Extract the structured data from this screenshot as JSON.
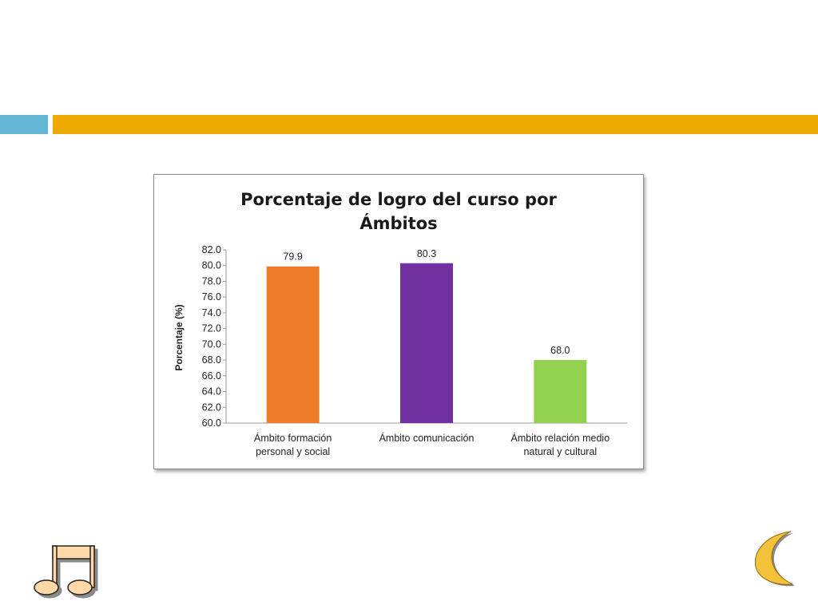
{
  "colors": {
    "accent_blue": "#62b5d3",
    "accent_gold": "#eeaa00"
  },
  "icons": {
    "bottom_left": "music-note-icon",
    "bottom_right": "crescent-moon-icon"
  },
  "chart_data": {
    "type": "bar",
    "title_lines": [
      "Porcentaje de logro del curso por",
      "Ámbitos"
    ],
    "ylabel": "Porcentaje (%)",
    "xlabel": "",
    "ylim": [
      60.0,
      82.0
    ],
    "yticks": [
      "60.0",
      "62.0",
      "64.0",
      "66.0",
      "68.0",
      "70.0",
      "72.0",
      "74.0",
      "76.0",
      "78.0",
      "80.0",
      "82.0"
    ],
    "categories": [
      [
        "Ámbito formación",
        "personal y social"
      ],
      [
        "Ámbito comunicación"
      ],
      [
        "Ámbito relación medio",
        "natural y cultural"
      ]
    ],
    "values": [
      79.9,
      80.3,
      68.0
    ],
    "data_labels": [
      "79.9",
      "80.3",
      "68.0"
    ],
    "bar_colors": [
      "#ed7d2b",
      "#7030a0",
      "#92d050"
    ],
    "grid": false,
    "legend": "none"
  }
}
